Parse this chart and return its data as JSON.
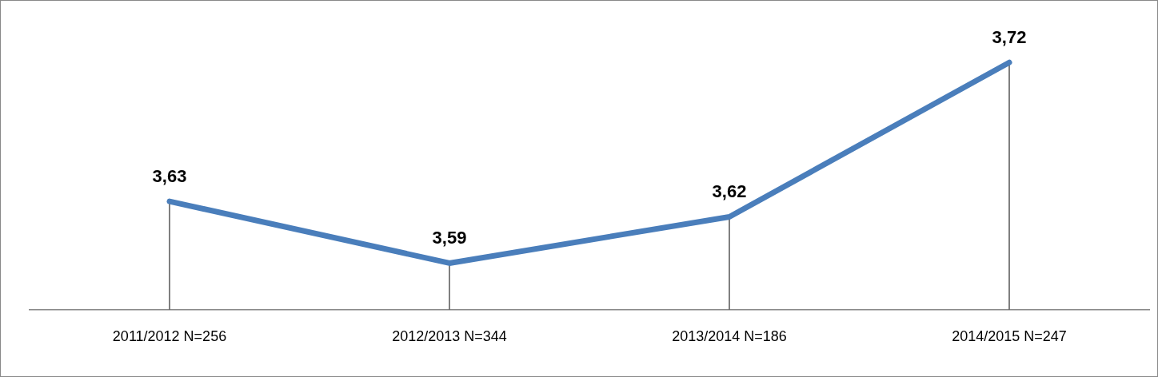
{
  "chart_data": {
    "type": "line",
    "categories": [
      "2011/2012 N=256",
      "2012/2013 N=344",
      "2013/2014 N=186",
      "2014/2015 N=247"
    ],
    "series": [
      {
        "color": "#4a7ebb",
        "values": [
          3.63,
          3.59,
          3.62,
          3.72
        ],
        "value_labels": [
          "3,63",
          "3,59",
          "3,62",
          "3,72"
        ]
      }
    ],
    "grid": "x",
    "legend": false,
    "marker": "none",
    "line_style": "solid"
  }
}
